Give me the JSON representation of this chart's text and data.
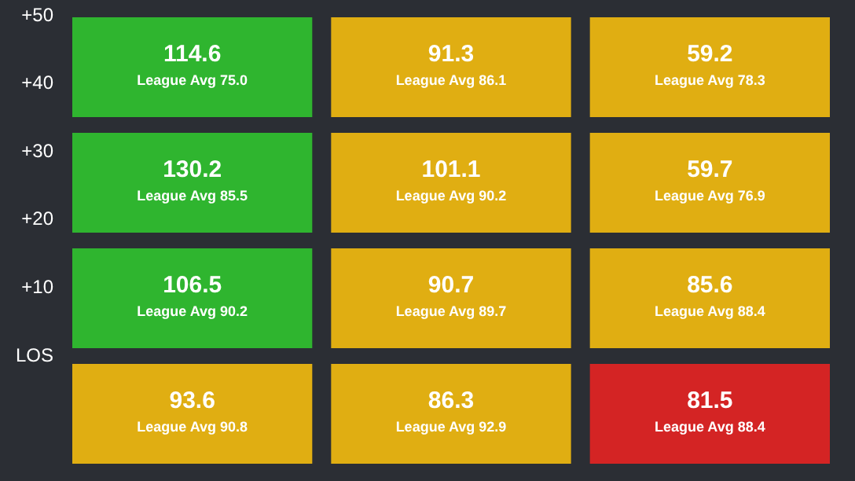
{
  "chart_data": {
    "type": "heatmap",
    "data_labels": true,
    "categories": [
      null,
      null,
      null
    ],
    "y_categories": [
      null,
      null,
      null,
      null
    ],
    "cells": [
      [
        114.6,
        91.3,
        59.2
      ],
      [
        130.2,
        101.1,
        59.7
      ],
      [
        106.5,
        90.7,
        85.6
      ],
      [
        93.6,
        86.3,
        81.5
      ]
    ],
    "colors": [
      [
        "#2fb52f",
        "#e0ae12",
        "#e0ae12"
      ],
      [
        "#2fb52f",
        "#e0ae12",
        "#e0ae12"
      ],
      [
        "#2fb52f",
        "#e0ae12",
        "#e0ae12"
      ],
      [
        "#e0ae12",
        "#e0ae12",
        "#d42424"
      ]
    ],
    "annotations": [
      "League Avg 75.0",
      "League Avg 86.1",
      "League Avg 78.3",
      "League Avg 85.5",
      "League Avg 90.2",
      "League Avg 76.9",
      "League Avg 90.2",
      "League Avg 89.7",
      "League Avg 88.4",
      "League Avg 90.8",
      "League Avg 92.9",
      "League Avg 88.4",
      "+50",
      "+40",
      "+30",
      "+20",
      "+10",
      "LOS"
    ]
  }
}
